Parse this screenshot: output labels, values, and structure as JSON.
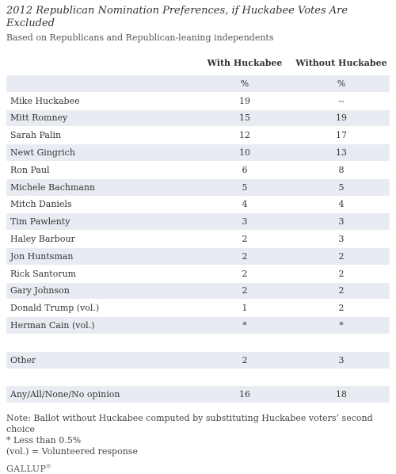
{
  "header": {
    "title": "2012 Republican Nomination Preferences, if Huckabee Votes Are Excluded",
    "subtitle": "Based on Republicans and Republican-leaning independents"
  },
  "chart_data": {
    "type": "table",
    "columns": [
      "With Huckabee",
      "Without Huckabee"
    ],
    "units_row": [
      "%",
      "%"
    ],
    "rows": [
      {
        "label": "Mike Huckabee",
        "with": "19",
        "without": "--"
      },
      {
        "label": "Mitt Romney",
        "with": "15",
        "without": "19"
      },
      {
        "label": "Sarah Palin",
        "with": "12",
        "without": "17"
      },
      {
        "label": "Newt Gingrich",
        "with": "10",
        "without": "13"
      },
      {
        "label": "Ron Paul",
        "with": "6",
        "without": "8"
      },
      {
        "label": "Michele Bachmann",
        "with": "5",
        "without": "5"
      },
      {
        "label": "Mitch Daniels",
        "with": "4",
        "without": "4"
      },
      {
        "label": "Tim Pawlenty",
        "with": "3",
        "without": "3"
      },
      {
        "label": "Haley Barbour",
        "with": "2",
        "without": "3"
      },
      {
        "label": "Jon Huntsman",
        "with": "2",
        "without": "2"
      },
      {
        "label": "Rick Santorum",
        "with": "2",
        "without": "2"
      },
      {
        "label": "Gary Johnson",
        "with": "2",
        "without": "2"
      },
      {
        "label": "Donald Trump (vol.)",
        "with": "1",
        "without": "2"
      },
      {
        "label": "Herman Cain (vol.)",
        "with": "*",
        "without": "*"
      },
      {
        "label": "Other",
        "with": "2",
        "without": "3"
      },
      {
        "label": "Any/All/None/No opinion",
        "with": "16",
        "without": "18"
      }
    ]
  },
  "notes": {
    "line1": "Note: Ballot without Huckabee computed by substituting Huckabee voters’ second choice",
    "line2": "* Less than 0.5%",
    "line3": "(vol.) = Volunteered response"
  },
  "logo": {
    "text": "GALLUP",
    "mark": "®"
  },
  "colors": {
    "row_shade": "#e8ecf2",
    "text": "#333333"
  }
}
